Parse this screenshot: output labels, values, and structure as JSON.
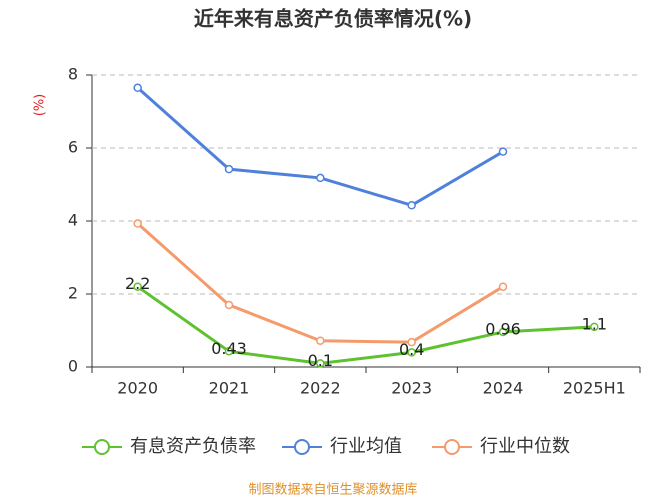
{
  "chart_data": {
    "type": "line",
    "title": "近年来有息资产负债率情况(%)",
    "y_label": "(%)",
    "categories": [
      "2020",
      "2021",
      "2022",
      "2023",
      "2024",
      "2025H1"
    ],
    "series": [
      {
        "name": "有息资产负债率",
        "color": "#5ec12f",
        "values": [
          2.2,
          0.43,
          0.1,
          0.4,
          0.96,
          1.1
        ],
        "show_labels": true
      },
      {
        "name": "行业均值",
        "color": "#4f81dc",
        "values": [
          7.65,
          5.42,
          5.18,
          4.43,
          5.9,
          null
        ]
      },
      {
        "name": "行业中位数",
        "color": "#f59a6b",
        "values": [
          3.93,
          1.7,
          0.72,
          0.68,
          2.2,
          null
        ]
      }
    ],
    "ylim": [
      0,
      8
    ],
    "yticks": [
      0,
      2,
      4,
      6,
      8
    ],
    "grid": true,
    "footer": "制图数据来自恒生聚源数据库"
  }
}
